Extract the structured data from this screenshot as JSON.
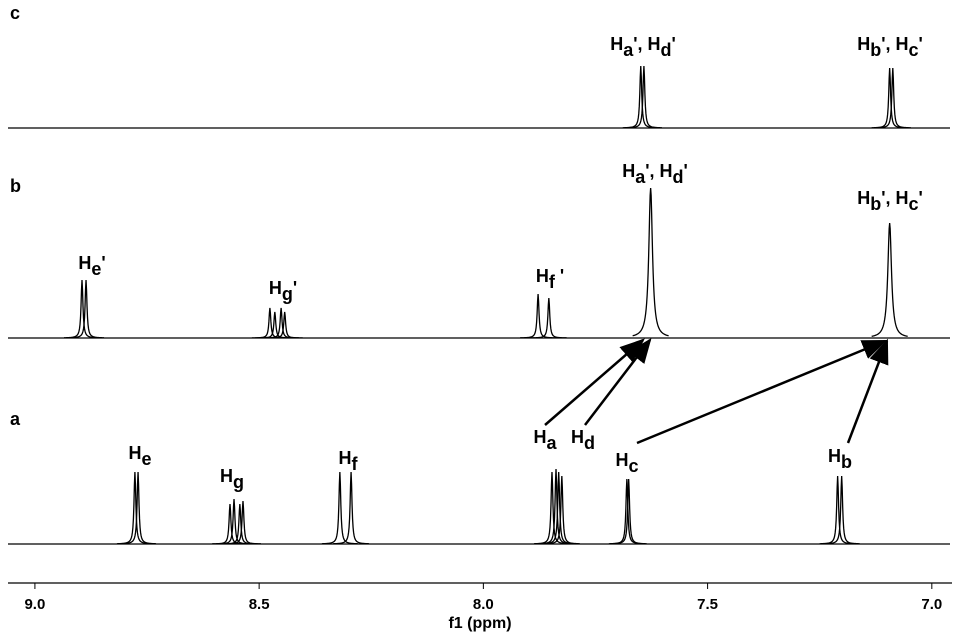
{
  "chart_data": {
    "type": "line",
    "x_label": "f1 (ppm)",
    "xlim": [
      9.06,
      6.955
    ],
    "xticks": [
      {
        "value": 9.0,
        "label": "9.0"
      },
      {
        "value": 8.5,
        "label": "8.5"
      },
      {
        "value": 8.0,
        "label": "8.0"
      },
      {
        "value": 7.5,
        "label": "7.5"
      },
      {
        "value": 7.0,
        "label": "7.0"
      }
    ],
    "series": [
      {
        "name": "a",
        "color": "#000000",
        "x": [
          8.777,
          8.77,
          8.565,
          8.556,
          8.543,
          8.536,
          8.32,
          8.295,
          7.847,
          7.838,
          7.832,
          7.825,
          7.68,
          7.676,
          7.21,
          7.201
        ],
        "values": [
          72,
          72,
          40,
          45,
          40,
          43,
          72,
          72,
          72,
          75,
          72,
          68,
          65,
          65,
          68,
          68
        ],
        "annotations": [
          "He",
          "Hg",
          "Hf",
          "Ha",
          "Hd",
          "Hc",
          "Hb"
        ]
      },
      {
        "name": "b",
        "color": "#000000",
        "x": [
          8.895,
          8.886,
          8.476,
          8.465,
          8.451,
          8.443,
          7.878,
          7.854,
          7.627,
          7.094
        ],
        "values": [
          58,
          58,
          30,
          26,
          30,
          26,
          44,
          40,
          150,
          115
        ],
        "annotations": [
          "He'",
          "Hg'",
          "Hf '",
          "Ha', Hd'",
          "Hb', Hc'"
        ]
      },
      {
        "name": "c",
        "color": "#000000",
        "x": [
          7.649,
          7.642,
          7.094,
          7.087
        ],
        "values": [
          62,
          62,
          60,
          60
        ],
        "annotations": [
          "Ha', Hd'",
          "Hb', Hc'"
        ]
      }
    ]
  }
}
